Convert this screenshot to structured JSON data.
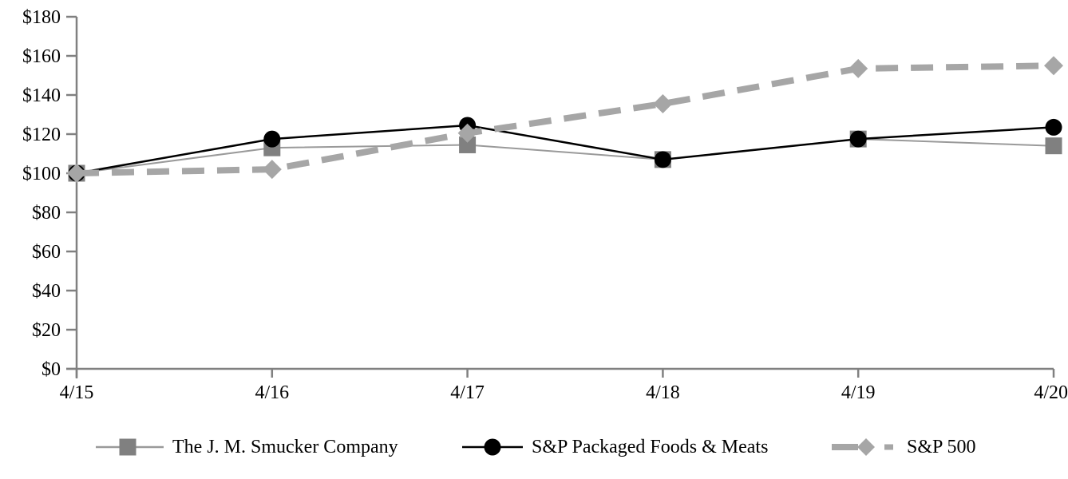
{
  "chart_data": {
    "type": "line",
    "title": "",
    "xlabel": "",
    "ylabel": "",
    "categories": [
      "4/15",
      "4/16",
      "4/17",
      "4/18",
      "4/19",
      "4/20"
    ],
    "series": [
      {
        "name": "The J. M. Smucker Company",
        "values": [
          100,
          113,
          114.5,
          107,
          117.5,
          114
        ],
        "line_color": "#9a9a9a",
        "marker": "square",
        "marker_color": "#808080",
        "line_width": 2,
        "dashed": false
      },
      {
        "name": "S&P Packaged Foods & Meats",
        "values": [
          100,
          117.5,
          124.5,
          107,
          117.5,
          123.5
        ],
        "line_color": "#000000",
        "marker": "circle",
        "marker_color": "#000000",
        "line_width": 2.5,
        "dashed": false
      },
      {
        "name": "S&P 500",
        "values": [
          100,
          102,
          120.5,
          135.5,
          153.5,
          155
        ],
        "line_color": "#a6a6a6",
        "marker": "diamond",
        "marker_color": "#a6a6a6",
        "line_width": 8,
        "dashed": true
      }
    ],
    "y_axis": {
      "ticks": [
        {
          "label": "$0",
          "value": 0
        },
        {
          "label": "$20",
          "value": 20
        },
        {
          "label": "$40",
          "value": 40
        },
        {
          "label": "$60",
          "value": 60
        },
        {
          "label": "$80",
          "value": 80
        },
        {
          "label": "$100",
          "value": 100
        },
        {
          "label": "$120",
          "value": 120
        },
        {
          "label": "$140",
          "value": 140
        },
        {
          "label": "$160",
          "value": 160
        },
        {
          "label": "$180",
          "value": 180
        }
      ],
      "range": [
        0,
        180
      ]
    },
    "grid": false,
    "legend_position": "bottom",
    "axis_color": "#808080",
    "text_color": "#000000"
  }
}
